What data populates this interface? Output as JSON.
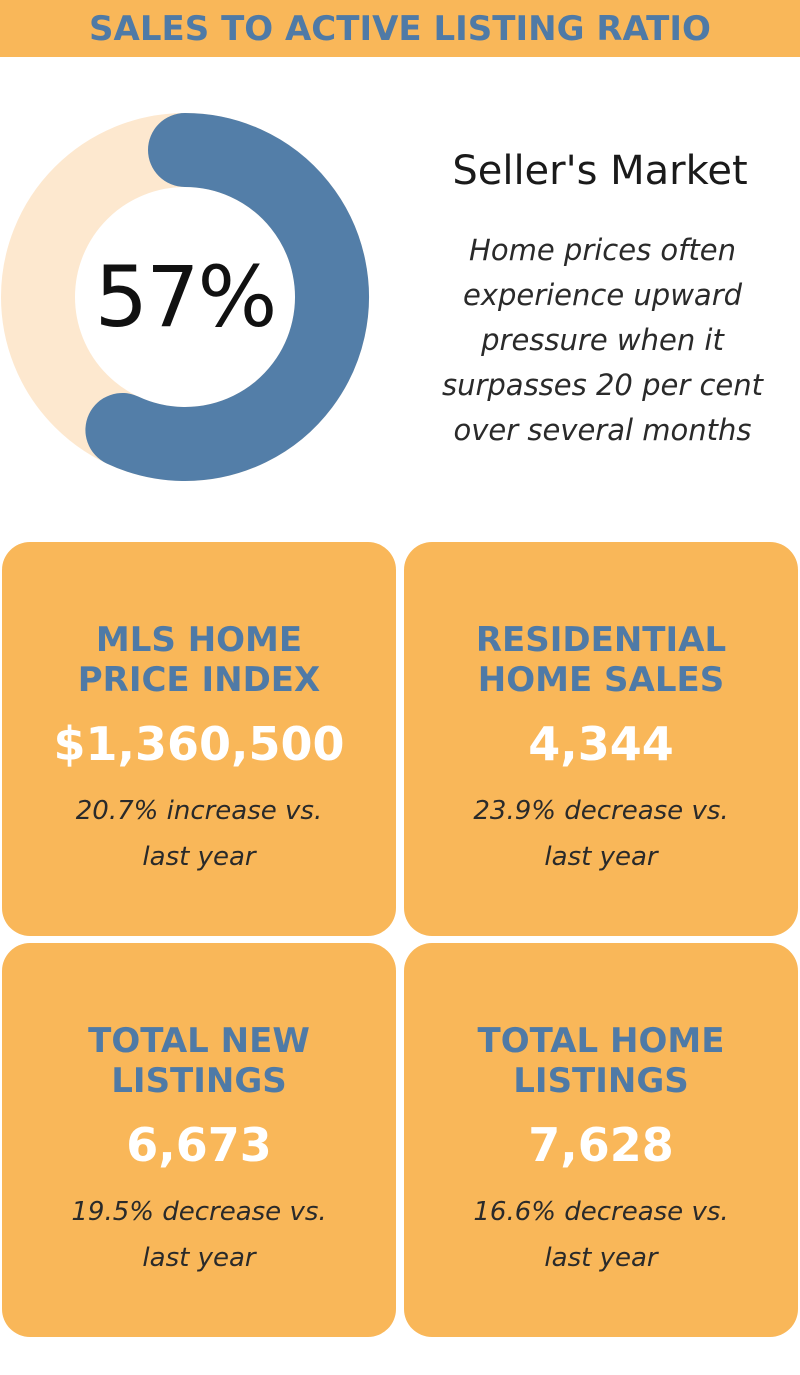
{
  "header": {
    "title": "SALES TO ACTIVE LISTING RATIO"
  },
  "chart_data": {
    "type": "pie",
    "categories": [
      "",
      ""
    ],
    "values": [
      57,
      43
    ],
    "center_label": "57%",
    "title": "",
    "colors": [
      "#537ea8",
      "#fde8cf"
    ]
  },
  "market": {
    "title": "Seller's Market",
    "description": "Home prices often experience upward pressure when it surpasses 20 per cent over several months"
  },
  "cards": [
    {
      "title": "MLS HOME\nPRICE INDEX",
      "value": "$1,360,500",
      "change": "20.7% increase vs.\nlast year"
    },
    {
      "title": "RESIDENTIAL\nHOME SALES",
      "value": "4,344",
      "change": "23.9% decrease vs.\nlast year"
    },
    {
      "title": "TOTAL NEW\nLISTINGS",
      "value": "6,673",
      "change": "19.5% decrease vs.\nlast year"
    },
    {
      "title": "TOTAL HOME\nLISTINGS",
      "value": "7,628",
      "change": "16.6% decrease vs.\nlast year"
    }
  ],
  "colors": {
    "accent_orange": "#f9b759",
    "accent_blue": "#4f7aa6",
    "donut_track": "#fde8cf",
    "white": "#ffffff"
  }
}
